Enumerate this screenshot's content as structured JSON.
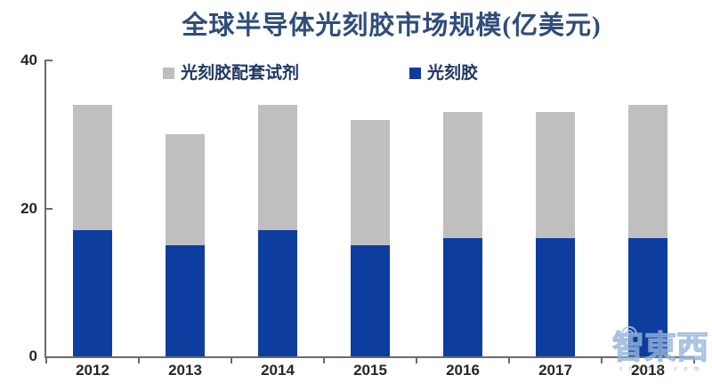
{
  "title": "全球半导体光刻胶市场规模(亿美元)",
  "chart_data": {
    "type": "bar",
    "stacked": true,
    "title": "全球半导体光刻胶市场规模(亿美元)",
    "categories": [
      "2012",
      "2013",
      "2014",
      "2015",
      "2016",
      "2017",
      "2018"
    ],
    "series": [
      {
        "name": "光刻胶",
        "color": "#0e3da0",
        "values": [
          17,
          15,
          17,
          15,
          16,
          16,
          16
        ]
      },
      {
        "name": "光刻胶配套试剂",
        "color": "#bfbfbf",
        "values": [
          17,
          15,
          17,
          17,
          17,
          17,
          18
        ]
      }
    ],
    "totals": [
      34,
      30,
      34,
      32,
      33,
      33,
      34
    ],
    "xlabel": "",
    "ylabel": "",
    "ylim": [
      0,
      40
    ],
    "yticks": [
      0,
      20,
      40
    ],
    "grid": false,
    "legend_position": "top"
  },
  "legend": {
    "items": [
      {
        "label": "光刻胶配套试剂",
        "color": "#bfbfbf"
      },
      {
        "label": "光刻胶",
        "color": "#0e3da0"
      }
    ]
  },
  "watermark": {
    "text": "智東西",
    "subtext": "z h i d x . c o m"
  },
  "colors": {
    "bar_blue": "#0e3da0",
    "bar_gray": "#bfbfbf",
    "axis": "#6b6b6b",
    "title_text": "#2e4d7b",
    "legend_text": "#1f3864",
    "tick_label": "#262626",
    "watermark": "#a8c4e4"
  }
}
